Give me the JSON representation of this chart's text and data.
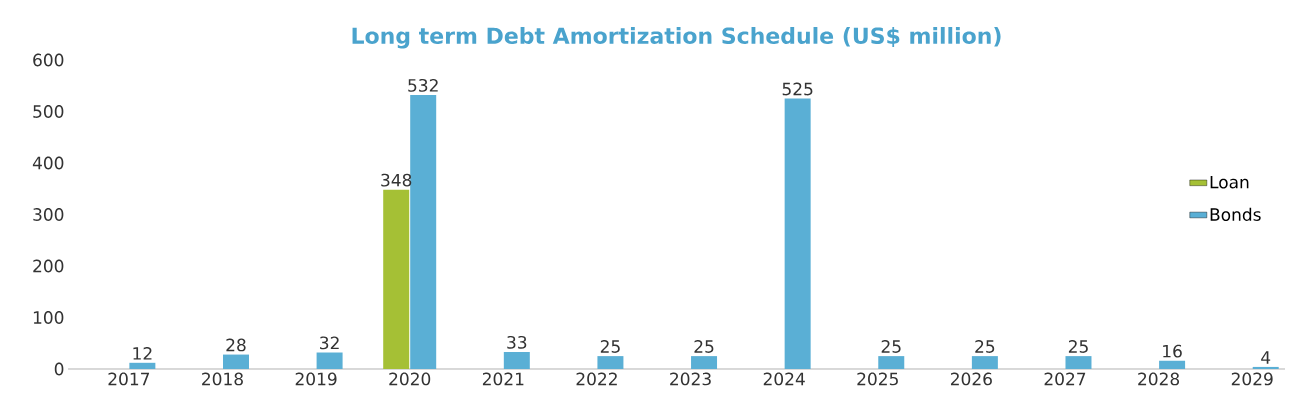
{
  "chart_data": {
    "type": "bar",
    "title": "Long term Debt Amortization Schedule (US$ million)",
    "categories": [
      "2017",
      "2018",
      "2019",
      "2020",
      "2021",
      "2022",
      "2023",
      "2024",
      "2025",
      "2026",
      "2027",
      "2028",
      "2029"
    ],
    "series": [
      {
        "name": "Loan",
        "color": "#a5c035",
        "values": [
          null,
          null,
          null,
          348,
          null,
          null,
          null,
          null,
          null,
          null,
          null,
          null,
          null
        ]
      },
      {
        "name": "Bonds",
        "color": "#5aafd5",
        "values": [
          12,
          28,
          32,
          532,
          33,
          25,
          25,
          525,
          25,
          25,
          25,
          16,
          4
        ]
      }
    ],
    "ylim": [
      0,
      600
    ],
    "yticks": [
      0,
      100,
      200,
      300,
      400,
      500,
      600
    ],
    "grid": false,
    "legend": "right",
    "data_labels": true
  }
}
